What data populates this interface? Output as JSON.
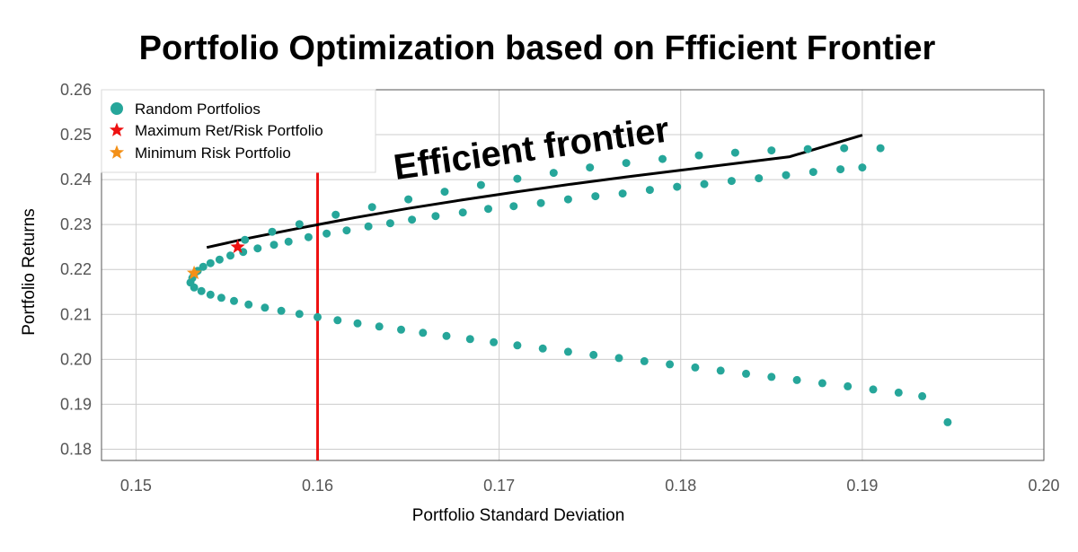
{
  "chart_data": {
    "type": "scatter",
    "title": "Portfolio Optimization based on Ffficient Frontier",
    "xlabel": "Portfolio Standard Deviation",
    "ylabel": "Portfolio Returns",
    "xlim": [
      0.1481,
      0.2
    ],
    "ylim": [
      0.1775,
      0.26
    ],
    "x_ticks": [
      "0.15",
      "0.16",
      "0.17",
      "0.18",
      "0.19",
      "0.20"
    ],
    "y_ticks": [
      "0.18",
      "0.19",
      "0.20",
      "0.21",
      "0.22",
      "0.23",
      "0.24",
      "0.25",
      "0.26"
    ],
    "grid": true,
    "legend_position": "top-left",
    "series": [
      {
        "name": "Random Portfolios",
        "marker": "circle",
        "color": "#26A69A",
        "points": [
          [
            0.153,
            0.2171
          ],
          [
            0.1531,
            0.2181
          ],
          [
            0.1532,
            0.2189
          ],
          [
            0.1534,
            0.2197
          ],
          [
            0.1537,
            0.2206
          ],
          [
            0.1541,
            0.2214
          ],
          [
            0.1546,
            0.2222
          ],
          [
            0.1552,
            0.2231
          ],
          [
            0.1559,
            0.2239
          ],
          [
            0.1567,
            0.2247
          ],
          [
            0.1576,
            0.2255
          ],
          [
            0.1584,
            0.2262
          ],
          [
            0.1595,
            0.2272
          ],
          [
            0.1605,
            0.228
          ],
          [
            0.1616,
            0.2287
          ],
          [
            0.1628,
            0.2296
          ],
          [
            0.164,
            0.2303
          ],
          [
            0.1652,
            0.2311
          ],
          [
            0.1665,
            0.2319
          ],
          [
            0.168,
            0.2327
          ],
          [
            0.1694,
            0.2335
          ],
          [
            0.1708,
            0.2341
          ],
          [
            0.1723,
            0.2348
          ],
          [
            0.1738,
            0.2356
          ],
          [
            0.1753,
            0.2363
          ],
          [
            0.1768,
            0.2369
          ],
          [
            0.1783,
            0.2377
          ],
          [
            0.1798,
            0.2384
          ],
          [
            0.1813,
            0.239
          ],
          [
            0.1828,
            0.2397
          ],
          [
            0.1843,
            0.2403
          ],
          [
            0.1858,
            0.241
          ],
          [
            0.1873,
            0.2417
          ],
          [
            0.1888,
            0.2423
          ],
          [
            0.19,
            0.2427
          ],
          [
            0.191,
            0.247
          ],
          [
            0.156,
            0.2266
          ],
          [
            0.1575,
            0.2284
          ],
          [
            0.159,
            0.2301
          ],
          [
            0.161,
            0.2322
          ],
          [
            0.163,
            0.2339
          ],
          [
            0.165,
            0.2356
          ],
          [
            0.167,
            0.2373
          ],
          [
            0.169,
            0.2388
          ],
          [
            0.171,
            0.2402
          ],
          [
            0.173,
            0.2415
          ],
          [
            0.175,
            0.2427
          ],
          [
            0.177,
            0.2437
          ],
          [
            0.179,
            0.2446
          ],
          [
            0.181,
            0.2454
          ],
          [
            0.183,
            0.246
          ],
          [
            0.185,
            0.2465
          ],
          [
            0.187,
            0.2468
          ],
          [
            0.189,
            0.247
          ],
          [
            0.1532,
            0.216
          ],
          [
            0.1536,
            0.2152
          ],
          [
            0.1541,
            0.2144
          ],
          [
            0.1547,
            0.2137
          ],
          [
            0.1554,
            0.213
          ],
          [
            0.1562,
            0.2122
          ],
          [
            0.1571,
            0.2115
          ],
          [
            0.158,
            0.2108
          ],
          [
            0.159,
            0.2101
          ],
          [
            0.16,
            0.2094
          ],
          [
            0.1611,
            0.2087
          ],
          [
            0.1622,
            0.208
          ],
          [
            0.1634,
            0.2073
          ],
          [
            0.1646,
            0.2066
          ],
          [
            0.1658,
            0.2059
          ],
          [
            0.1671,
            0.2052
          ],
          [
            0.1684,
            0.2045
          ],
          [
            0.1697,
            0.2038
          ],
          [
            0.171,
            0.2031
          ],
          [
            0.1724,
            0.2024
          ],
          [
            0.1738,
            0.2017
          ],
          [
            0.1752,
            0.201
          ],
          [
            0.1766,
            0.2003
          ],
          [
            0.178,
            0.1996
          ],
          [
            0.1794,
            0.1989
          ],
          [
            0.1808,
            0.1982
          ],
          [
            0.1822,
            0.1975
          ],
          [
            0.1836,
            0.1968
          ],
          [
            0.185,
            0.1961
          ],
          [
            0.1864,
            0.1954
          ],
          [
            0.1878,
            0.1947
          ],
          [
            0.1892,
            0.194
          ],
          [
            0.1906,
            0.1933
          ],
          [
            0.192,
            0.1926
          ],
          [
            0.1933,
            0.1918
          ],
          [
            0.1947,
            0.186
          ]
        ]
      },
      {
        "name": "Maximum Ret/Risk Portfolio",
        "marker": "star",
        "color": "#EE1111",
        "points": [
          [
            0.1556,
            0.225
          ]
        ]
      },
      {
        "name": "Minimum Risk Portfolio",
        "marker": "star",
        "color": "#F39018",
        "points": [
          [
            0.1532,
            0.2192
          ]
        ]
      }
    ],
    "frontier_line": {
      "color": "#000000",
      "points": [
        [
          0.1539,
          0.2249
        ],
        [
          0.156,
          0.2268
        ],
        [
          0.159,
          0.2292
        ],
        [
          0.162,
          0.2315
        ],
        [
          0.165,
          0.2336
        ],
        [
          0.168,
          0.2355
        ],
        [
          0.171,
          0.2373
        ],
        [
          0.174,
          0.239
        ],
        [
          0.177,
          0.2406
        ],
        [
          0.18,
          0.2421
        ],
        [
          0.183,
          0.2436
        ],
        [
          0.186,
          0.2451
        ],
        [
          0.19,
          0.2499
        ]
      ]
    },
    "vertical_line": {
      "x": 0.16,
      "color": "#EE1111"
    },
    "annotations": [
      {
        "text": "Efficient frontier",
        "x": 0.1643,
        "y": 0.24,
        "rotate": -8
      }
    ]
  }
}
